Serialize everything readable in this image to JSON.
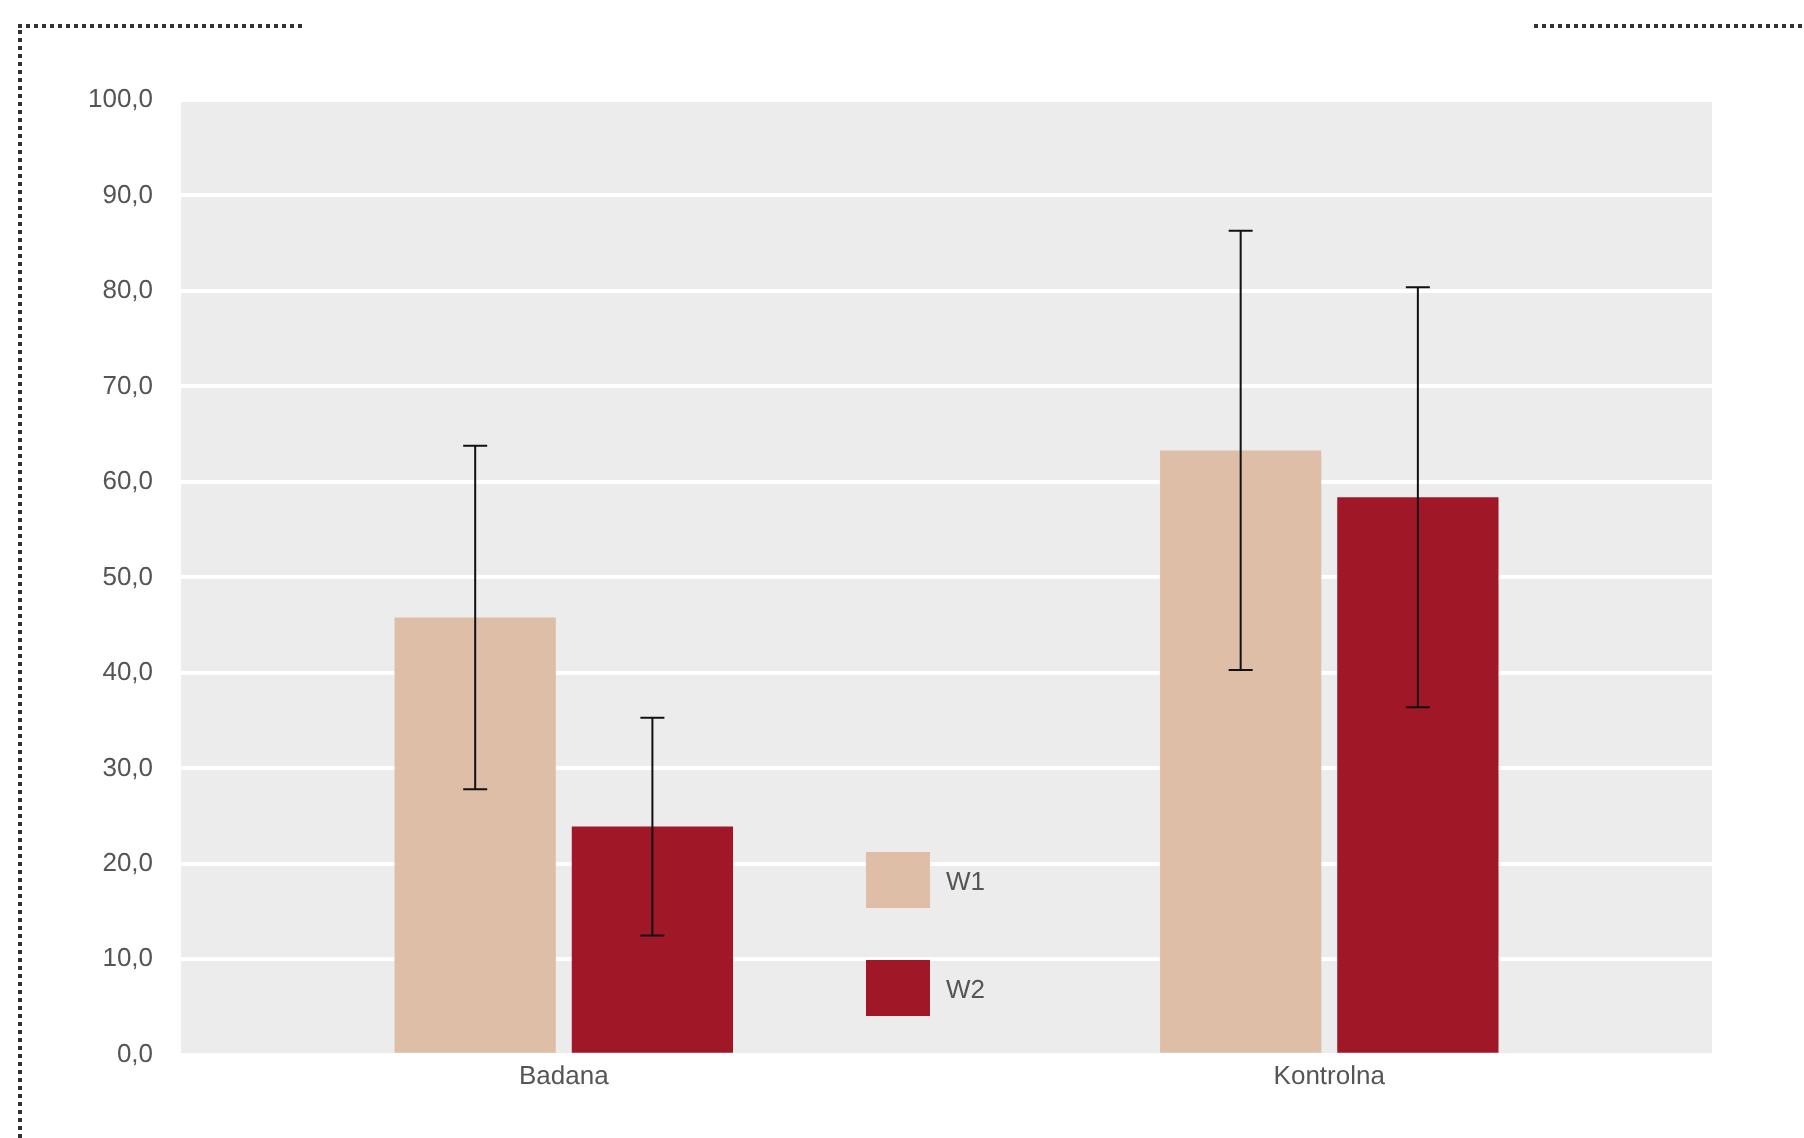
{
  "chart_data": {
    "type": "bar",
    "categories": [
      "Badana",
      "Kontrolna"
    ],
    "series": [
      {
        "name": "W1",
        "color": "#dfbea8",
        "values": [
          45.8,
          63.3
        ],
        "errors": [
          18,
          23
        ]
      },
      {
        "name": "W2",
        "color": "#a01828",
        "values": [
          23.9,
          58.4
        ],
        "errors": [
          11.4,
          22
        ]
      }
    ],
    "ylim": [
      0,
      100
    ],
    "yticks": [
      {
        "value": 0,
        "label": "0,0"
      },
      {
        "value": 10,
        "label": "10,0"
      },
      {
        "value": 20,
        "label": "20,0"
      },
      {
        "value": 30,
        "label": "30,0"
      },
      {
        "value": 40,
        "label": "40,0"
      },
      {
        "value": 50,
        "label": "50,0"
      },
      {
        "value": 60,
        "label": "60,0"
      },
      {
        "value": 70,
        "label": "70,0"
      },
      {
        "value": 80,
        "label": "80,0"
      },
      {
        "value": 90,
        "label": "90,0"
      },
      {
        "value": 100,
        "label": "100,0"
      }
    ],
    "grid": "y",
    "legend": "bottom"
  }
}
